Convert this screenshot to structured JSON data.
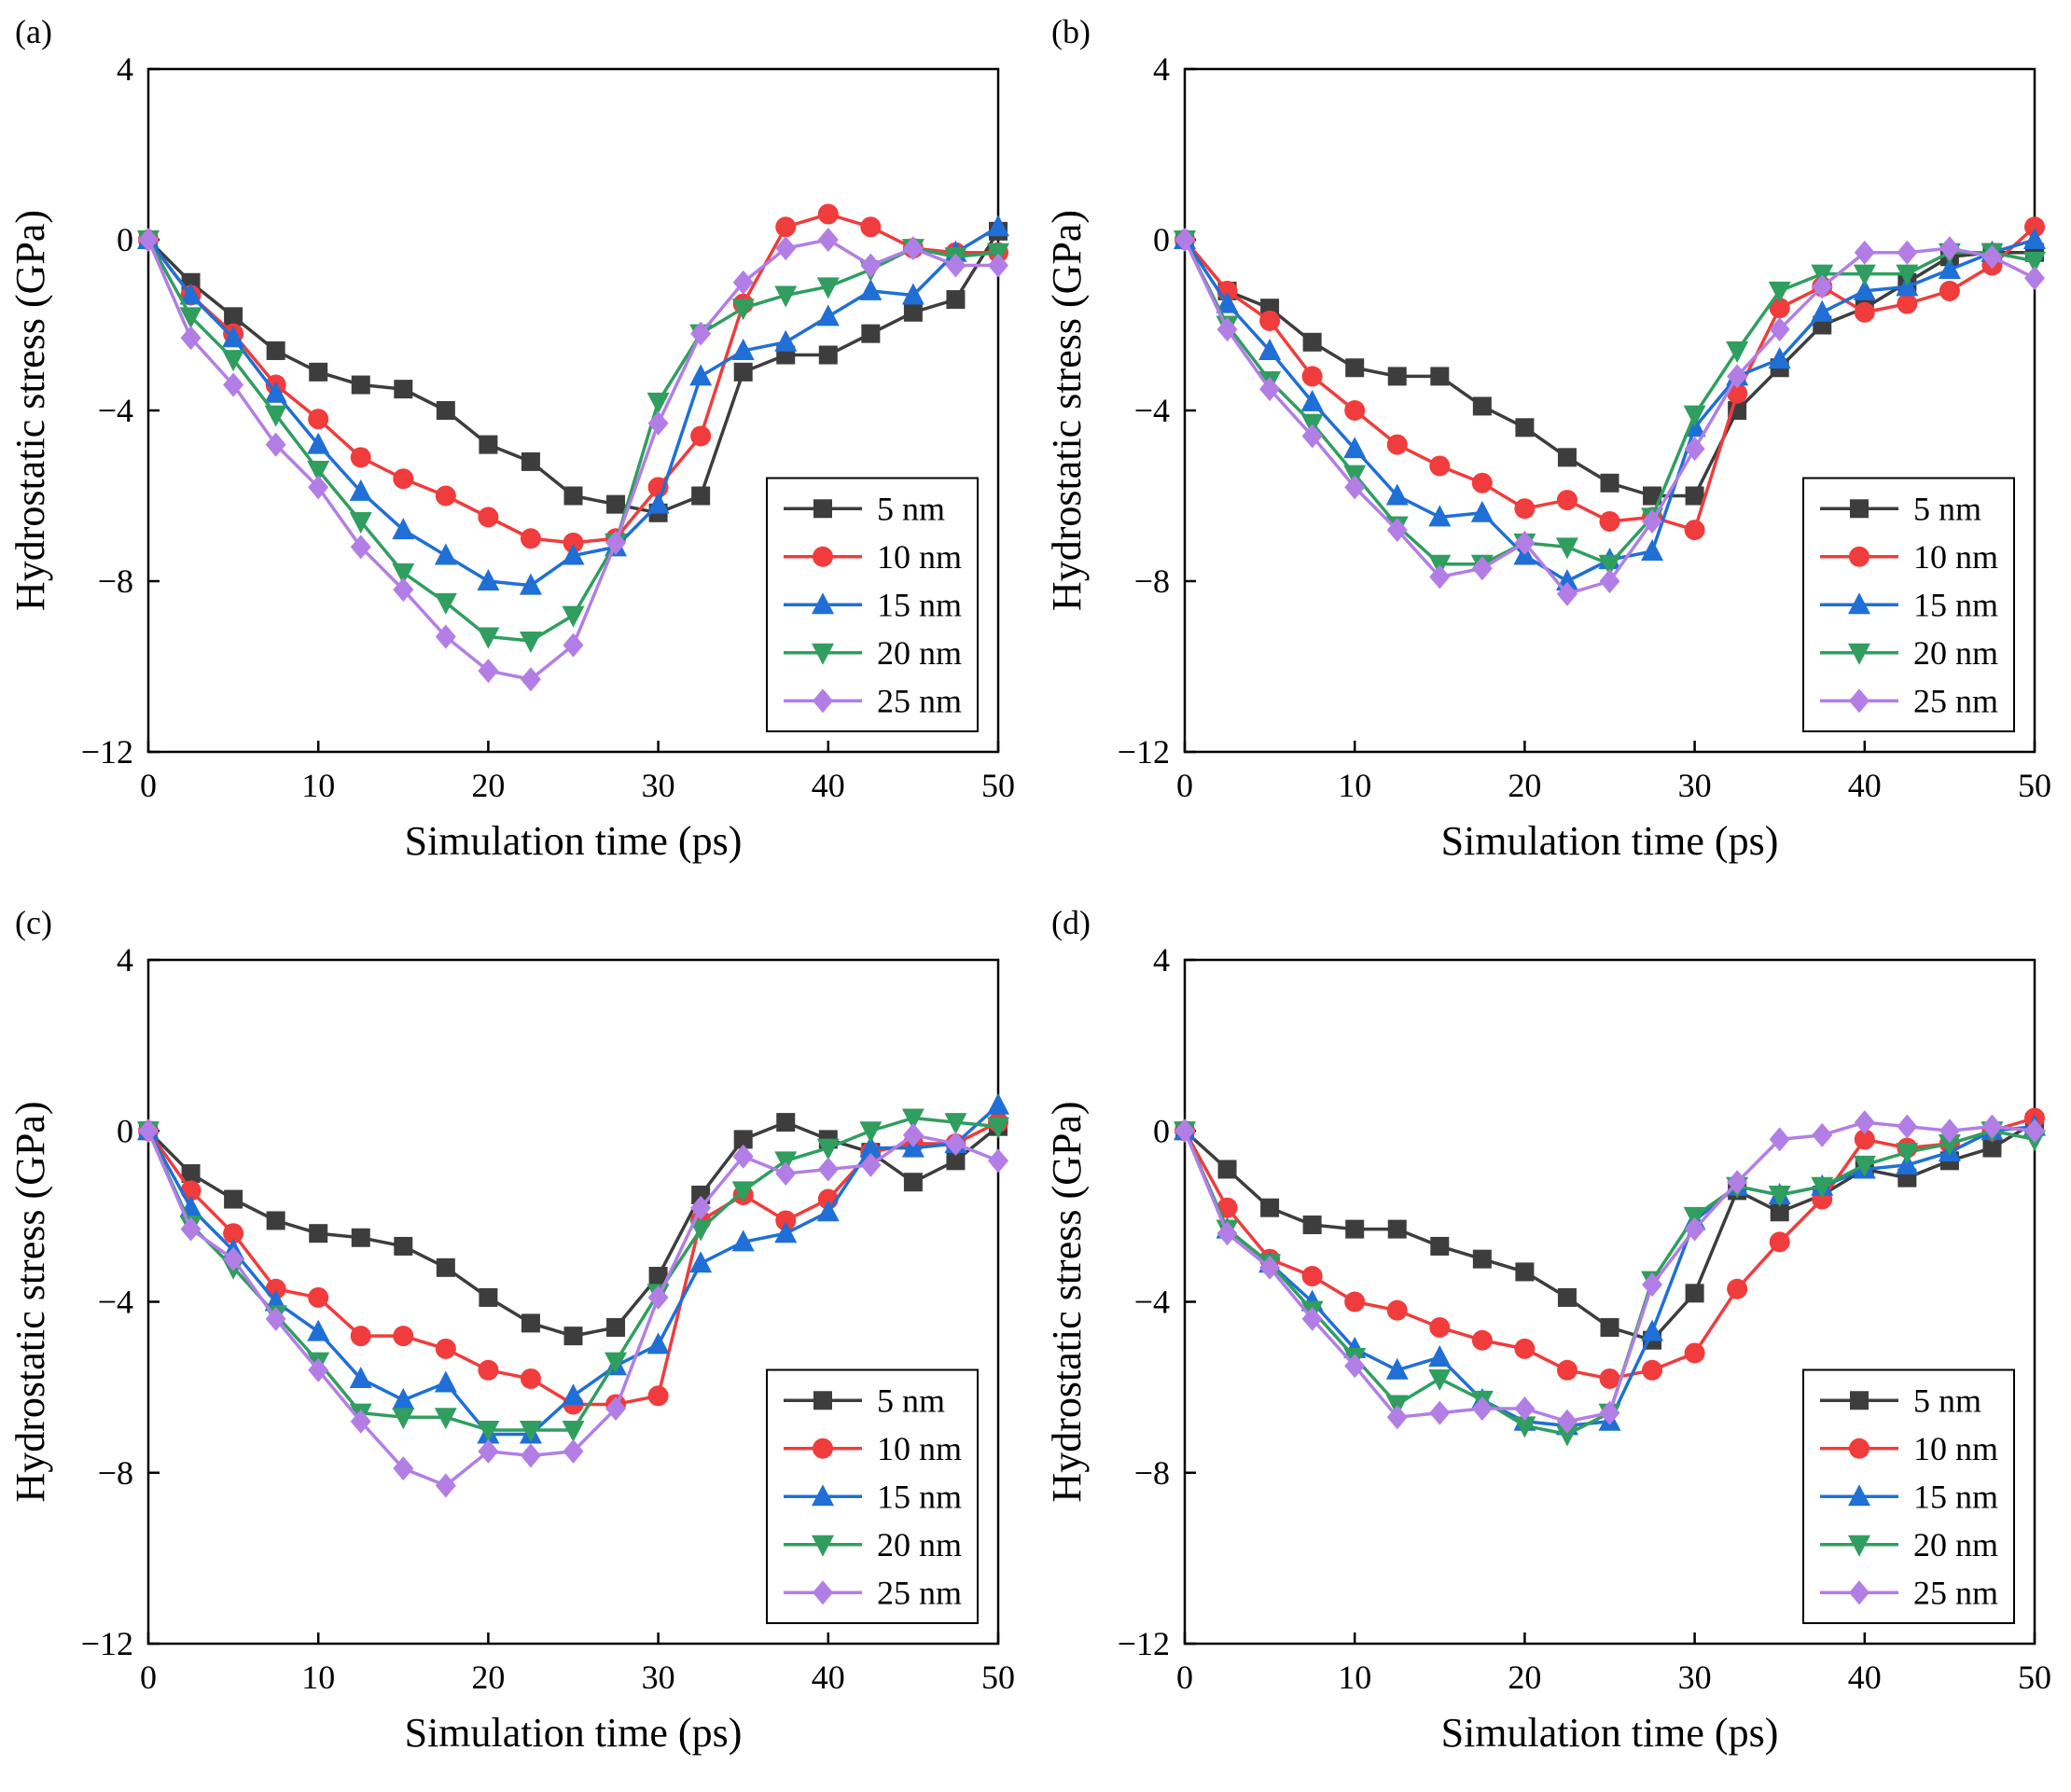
{
  "colors": {
    "5 nm": "#3d3d3d",
    "10 nm": "#f03c3c",
    "15 nm": "#1f6fd6",
    "20 nm": "#2f9e5f",
    "25 nm": "#b27ee6"
  },
  "chart_data": [
    {
      "panel": "(a)",
      "type": "line",
      "xlabel": "Simulation time (ps)",
      "ylabel": "Hydrostatic stress (GPa)",
      "xlim": [
        0,
        50
      ],
      "ylim": [
        -12,
        4
      ],
      "xticks": [
        0,
        10,
        20,
        30,
        40,
        50
      ],
      "yticks": [
        4,
        0,
        -4,
        -8,
        -12
      ],
      "ytick_labels": [
        "4",
        "0",
        "−4",
        "−8",
        "−12"
      ],
      "legend_position": "lower-right",
      "x": [
        0,
        2.5,
        5,
        7.5,
        10,
        12.5,
        15,
        17.5,
        20,
        22.5,
        25,
        27.5,
        30,
        32.5,
        35,
        37.5,
        40,
        42.5,
        45,
        47.5,
        50
      ],
      "series": [
        {
          "name": "5 nm",
          "marker": "square",
          "values": [
            0,
            -1.0,
            -1.8,
            -2.6,
            -3.1,
            -3.4,
            -3.5,
            -4.0,
            -4.8,
            -5.2,
            -6.0,
            -6.2,
            -6.4,
            -6.0,
            -3.1,
            -2.7,
            -2.7,
            -2.2,
            -1.7,
            -1.4,
            0.2
          ]
        },
        {
          "name": "10 nm",
          "marker": "circle",
          "values": [
            0,
            -1.3,
            -2.2,
            -3.4,
            -4.2,
            -5.1,
            -5.6,
            -6.0,
            -6.5,
            -7.0,
            -7.1,
            -7.0,
            -5.8,
            -4.6,
            -1.5,
            0.3,
            0.6,
            0.3,
            -0.2,
            -0.3,
            -0.3
          ]
        },
        {
          "name": "15 nm",
          "marker": "triangle-up",
          "values": [
            0,
            -1.3,
            -2.3,
            -3.6,
            -4.8,
            -5.9,
            -6.8,
            -7.4,
            -8.0,
            -8.1,
            -7.4,
            -7.2,
            -6.2,
            -3.2,
            -2.6,
            -2.4,
            -1.8,
            -1.2,
            -1.3,
            -0.3,
            0.3
          ]
        },
        {
          "name": "20 nm",
          "marker": "triangle-down",
          "values": [
            0,
            -1.8,
            -2.8,
            -4.1,
            -5.4,
            -6.6,
            -7.8,
            -8.5,
            -9.3,
            -9.4,
            -8.8,
            -7.1,
            -3.8,
            -2.2,
            -1.6,
            -1.3,
            -1.1,
            -0.7,
            -0.2,
            -0.4,
            -0.3
          ]
        },
        {
          "name": "25 nm",
          "marker": "diamond",
          "values": [
            0,
            -2.3,
            -3.4,
            -4.8,
            -5.8,
            -7.2,
            -8.2,
            -9.3,
            -10.1,
            -10.3,
            -9.5,
            -7.1,
            -4.3,
            -2.2,
            -1.0,
            -0.2,
            0.0,
            -0.6,
            -0.2,
            -0.6,
            -0.6
          ]
        }
      ]
    },
    {
      "panel": "(b)",
      "type": "line",
      "xlabel": "Simulation time (ps)",
      "ylabel": "Hydrostatic stress (GPa)",
      "xlim": [
        0,
        50
      ],
      "ylim": [
        -12,
        4
      ],
      "xticks": [
        0,
        10,
        20,
        30,
        40,
        50
      ],
      "yticks": [
        4,
        0,
        -4,
        -8,
        -12
      ],
      "ytick_labels": [
        "4",
        "0",
        "−4",
        "−8",
        "−12"
      ],
      "legend_position": "lower-right",
      "x": [
        0,
        2.5,
        5,
        7.5,
        10,
        12.5,
        15,
        17.5,
        20,
        22.5,
        25,
        27.5,
        30,
        32.5,
        35,
        37.5,
        40,
        42.5,
        45,
        47.5,
        50
      ],
      "series": [
        {
          "name": "5 nm",
          "marker": "square",
          "values": [
            0,
            -1.2,
            -1.6,
            -2.4,
            -3.0,
            -3.2,
            -3.2,
            -3.9,
            -4.4,
            -5.1,
            -5.7,
            -6.0,
            -6.0,
            -4.0,
            -3.0,
            -2.0,
            -1.6,
            -1.0,
            -0.4,
            -0.3,
            -0.3
          ]
        },
        {
          "name": "10 nm",
          "marker": "circle",
          "values": [
            0,
            -1.2,
            -1.9,
            -3.2,
            -4.0,
            -4.8,
            -5.3,
            -5.7,
            -6.3,
            -6.1,
            -6.6,
            -6.5,
            -6.8,
            -3.6,
            -1.6,
            -1.1,
            -1.7,
            -1.5,
            -1.2,
            -0.6,
            0.3
          ]
        },
        {
          "name": "15 nm",
          "marker": "triangle-up",
          "values": [
            0,
            -1.5,
            -2.6,
            -3.8,
            -4.9,
            -6.0,
            -6.5,
            -6.4,
            -7.4,
            -8.0,
            -7.5,
            -7.3,
            -4.4,
            -3.2,
            -2.8,
            -1.7,
            -1.2,
            -1.1,
            -0.7,
            -0.3,
            0.0
          ]
        },
        {
          "name": "20 nm",
          "marker": "triangle-down",
          "values": [
            0,
            -2.0,
            -3.3,
            -4.3,
            -5.5,
            -6.7,
            -7.6,
            -7.6,
            -7.1,
            -7.2,
            -7.6,
            -6.5,
            -4.1,
            -2.6,
            -1.2,
            -0.8,
            -0.8,
            -0.8,
            -0.3,
            -0.3,
            -0.5
          ]
        },
        {
          "name": "25 nm",
          "marker": "diamond",
          "values": [
            0,
            -2.1,
            -3.5,
            -4.6,
            -5.8,
            -6.8,
            -7.9,
            -7.7,
            -7.1,
            -8.3,
            -8.0,
            -6.6,
            -4.9,
            -3.2,
            -2.1,
            -1.1,
            -0.3,
            -0.3,
            -0.2,
            -0.4,
            -0.9
          ]
        }
      ]
    },
    {
      "panel": "(c)",
      "type": "line",
      "xlabel": "Simulation time (ps)",
      "ylabel": "Hydrostatic stress (GPa)",
      "xlim": [
        0,
        50
      ],
      "ylim": [
        -12,
        4
      ],
      "xticks": [
        0,
        10,
        20,
        30,
        40,
        50
      ],
      "yticks": [
        4,
        0,
        -4,
        -8,
        -12
      ],
      "ytick_labels": [
        "4",
        "0",
        "−4",
        "−8",
        "−12"
      ],
      "legend_position": "lower-right",
      "x": [
        0,
        2.5,
        5,
        7.5,
        10,
        12.5,
        15,
        17.5,
        20,
        22.5,
        25,
        27.5,
        30,
        32.5,
        35,
        37.5,
        40,
        42.5,
        45,
        47.5,
        50
      ],
      "series": [
        {
          "name": "5 nm",
          "marker": "square",
          "values": [
            0,
            -1.0,
            -1.6,
            -2.1,
            -2.4,
            -2.5,
            -2.7,
            -3.2,
            -3.9,
            -4.5,
            -4.8,
            -4.6,
            -3.4,
            -1.5,
            -0.2,
            0.2,
            -0.2,
            -0.5,
            -1.2,
            -0.7,
            0.1
          ]
        },
        {
          "name": "10 nm",
          "marker": "circle",
          "values": [
            0,
            -1.4,
            -2.4,
            -3.7,
            -3.9,
            -4.8,
            -4.8,
            -5.1,
            -5.6,
            -5.8,
            -6.4,
            -6.4,
            -6.2,
            -2.1,
            -1.5,
            -2.1,
            -1.6,
            -0.5,
            -0.3,
            -0.3,
            0.2
          ]
        },
        {
          "name": "15 nm",
          "marker": "triangle-up",
          "values": [
            0,
            -1.8,
            -2.8,
            -4.0,
            -4.7,
            -5.8,
            -6.3,
            -5.9,
            -7.1,
            -7.1,
            -6.2,
            -5.5,
            -5.0,
            -3.1,
            -2.6,
            -2.4,
            -1.9,
            -0.4,
            -0.4,
            -0.3,
            0.6
          ]
        },
        {
          "name": "20 nm",
          "marker": "triangle-down",
          "values": [
            0,
            -2.2,
            -3.2,
            -4.3,
            -5.4,
            -6.6,
            -6.7,
            -6.7,
            -7.0,
            -7.0,
            -7.0,
            -5.4,
            -3.8,
            -2.3,
            -1.4,
            -0.7,
            -0.4,
            0.0,
            0.3,
            0.2,
            0.1
          ]
        },
        {
          "name": "25 nm",
          "marker": "diamond",
          "values": [
            0,
            -2.3,
            -3.0,
            -4.4,
            -5.6,
            -6.8,
            -7.9,
            -8.3,
            -7.5,
            -7.6,
            -7.5,
            -6.5,
            -3.9,
            -1.8,
            -0.6,
            -1.0,
            -0.9,
            -0.8,
            -0.1,
            -0.3,
            -0.7
          ]
        }
      ]
    },
    {
      "panel": "(d)",
      "type": "line",
      "xlabel": "Simulation time (ps)",
      "ylabel": "Hydrostatic stress (GPa)",
      "xlim": [
        0,
        50
      ],
      "ylim": [
        -12,
        4
      ],
      "xticks": [
        0,
        10,
        20,
        30,
        40,
        50
      ],
      "yticks": [
        4,
        0,
        -4,
        -8,
        -12
      ],
      "ytick_labels": [
        "4",
        "0",
        "−4",
        "−8",
        "−12"
      ],
      "legend_position": "lower-right",
      "x": [
        0,
        2.5,
        5,
        7.5,
        10,
        12.5,
        15,
        17.5,
        20,
        22.5,
        25,
        27.5,
        30,
        32.5,
        35,
        37.5,
        40,
        42.5,
        45,
        47.5,
        50
      ],
      "series": [
        {
          "name": "5 nm",
          "marker": "square",
          "values": [
            0,
            -0.9,
            -1.8,
            -2.2,
            -2.3,
            -2.3,
            -2.7,
            -3.0,
            -3.3,
            -3.9,
            -4.6,
            -4.9,
            -3.8,
            -1.4,
            -1.9,
            -1.5,
            -0.9,
            -1.1,
            -0.7,
            -0.4,
            0.2
          ]
        },
        {
          "name": "10 nm",
          "marker": "circle",
          "values": [
            0,
            -1.8,
            -3.0,
            -3.4,
            -4.0,
            -4.2,
            -4.6,
            -4.9,
            -5.1,
            -5.6,
            -5.8,
            -5.6,
            -5.2,
            -3.7,
            -2.6,
            -1.6,
            -0.2,
            -0.4,
            -0.3,
            0.0,
            0.3
          ]
        },
        {
          "name": "15 nm",
          "marker": "triangle-up",
          "values": [
            0,
            -2.3,
            -3.1,
            -4.0,
            -5.1,
            -5.6,
            -5.3,
            -6.3,
            -6.8,
            -6.9,
            -6.8,
            -4.7,
            -2.1,
            -1.3,
            -1.5,
            -1.3,
            -0.9,
            -0.8,
            -0.5,
            0.0,
            0.1
          ]
        },
        {
          "name": "20 nm",
          "marker": "triangle-down",
          "values": [
            0,
            -2.3,
            -3.1,
            -4.2,
            -5.3,
            -6.4,
            -5.8,
            -6.3,
            -6.9,
            -7.1,
            -6.6,
            -3.5,
            -2.0,
            -1.3,
            -1.5,
            -1.3,
            -0.8,
            -0.5,
            -0.3,
            0.0,
            -0.2
          ]
        },
        {
          "name": "25 nm",
          "marker": "diamond",
          "values": [
            0,
            -2.4,
            -3.2,
            -4.4,
            -5.5,
            -6.7,
            -6.6,
            -6.5,
            -6.5,
            -6.8,
            -6.6,
            -3.6,
            -2.3,
            -1.2,
            -0.2,
            -0.1,
            0.2,
            0.1,
            0.0,
            0.1,
            0.0
          ]
        }
      ]
    }
  ]
}
